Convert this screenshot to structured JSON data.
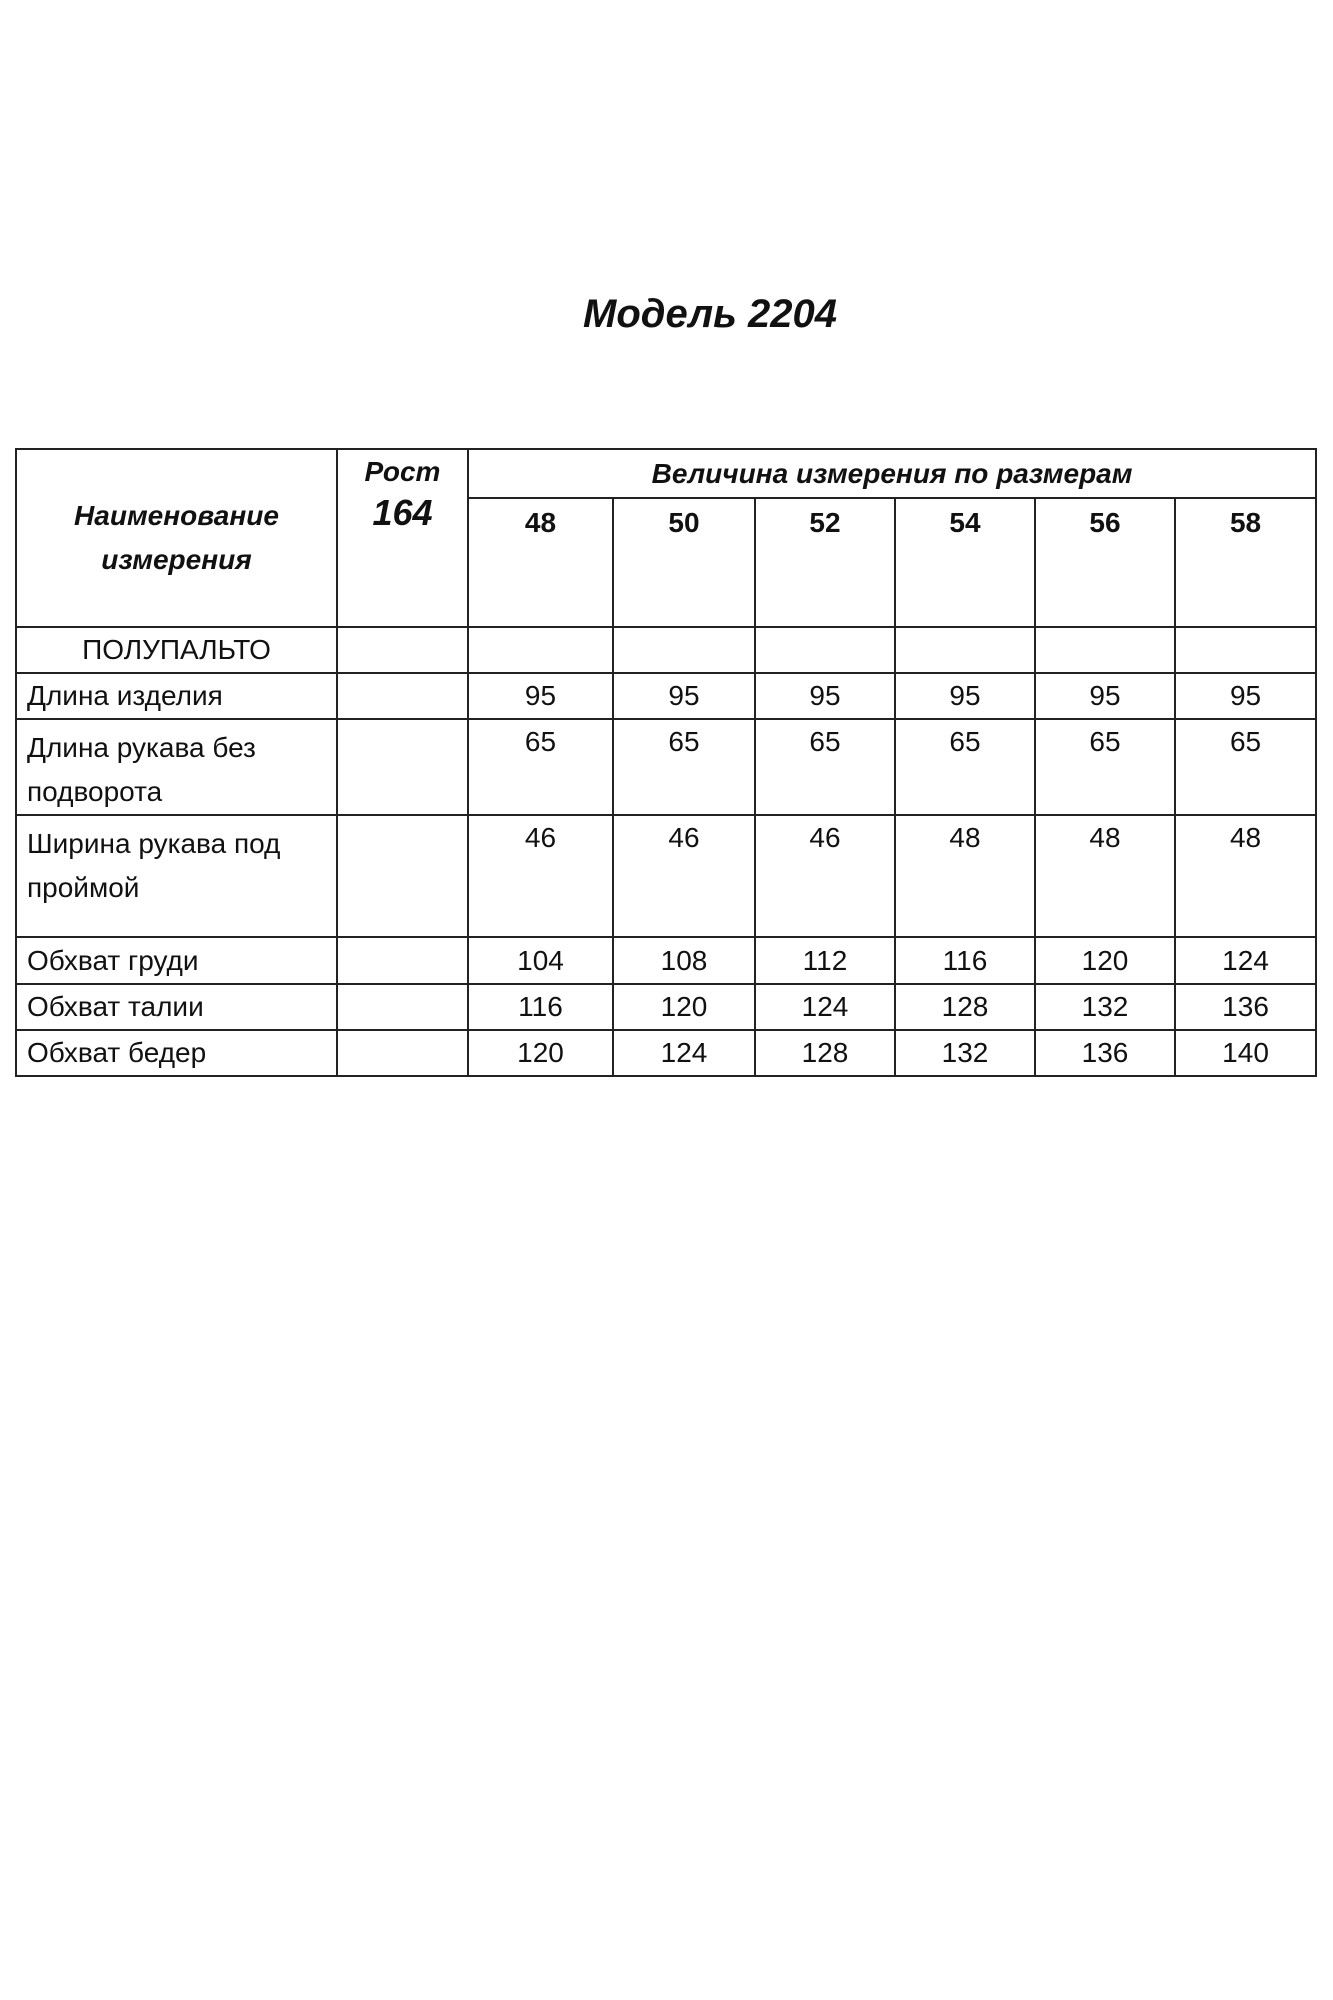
{
  "title": "Модель 2204",
  "table": {
    "name_header": "Наименование измерения",
    "height_label": "Рост",
    "height_value": "164",
    "sizes_header": "Величина измерения по размерам",
    "sizes": [
      "48",
      "50",
      "52",
      "54",
      "56",
      "58"
    ],
    "section": "ПОЛУПАЛЬТО",
    "rows": [
      {
        "name": "Длина изделия",
        "values": [
          "95",
          "95",
          "95",
          "95",
          "95",
          "95"
        ]
      },
      {
        "name": "Длина рукава без подворота",
        "values": [
          "65",
          "65",
          "65",
          "65",
          "65",
          "65"
        ]
      },
      {
        "name": "Ширина рукава под проймой",
        "values": [
          "46",
          "46",
          "46",
          "48",
          "48",
          "48"
        ]
      },
      {
        "name": "Обхват груди",
        "values": [
          "104",
          "108",
          "112",
          "116",
          "120",
          "124"
        ]
      },
      {
        "name": "Обхват талии",
        "values": [
          "116",
          "120",
          "124",
          "128",
          "132",
          "136"
        ]
      },
      {
        "name": "Обхват бедер",
        "values": [
          "120",
          "124",
          "128",
          "132",
          "136",
          "140"
        ]
      }
    ]
  }
}
